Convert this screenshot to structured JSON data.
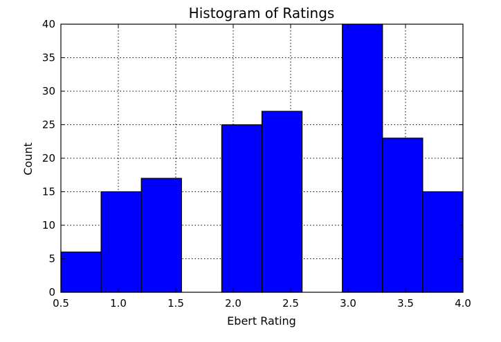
{
  "chart_data": {
    "type": "bar",
    "title": "Histogram of Ratings",
    "xlabel": "Ebert Rating",
    "ylabel": "Count",
    "xlim": [
      0.5,
      4.0
    ],
    "ylim": [
      0,
      40
    ],
    "grid": true,
    "bar_color": "#0000ff",
    "edge_color": "#000000",
    "bins": [
      {
        "x0": 0.5,
        "x1": 0.85,
        "count": 6
      },
      {
        "x0": 0.85,
        "x1": 1.2,
        "count": 15
      },
      {
        "x0": 1.2,
        "x1": 1.55,
        "count": 17
      },
      {
        "x0": 1.55,
        "x1": 1.9,
        "count": 0
      },
      {
        "x0": 1.9,
        "x1": 2.25,
        "count": 25
      },
      {
        "x0": 2.25,
        "x1": 2.6,
        "count": 27
      },
      {
        "x0": 2.6,
        "x1": 2.95,
        "count": 0
      },
      {
        "x0": 2.95,
        "x1": 3.3,
        "count": 40
      },
      {
        "x0": 3.3,
        "x1": 3.65,
        "count": 23
      },
      {
        "x0": 3.65,
        "x1": 4.0,
        "count": 15
      }
    ],
    "x_ticks": [
      {
        "value": 0.5,
        "label": "0.5"
      },
      {
        "value": 1.0,
        "label": "1.0"
      },
      {
        "value": 1.5,
        "label": "1.5"
      },
      {
        "value": 2.0,
        "label": "2.0"
      },
      {
        "value": 2.5,
        "label": "2.5"
      },
      {
        "value": 3.0,
        "label": "3.0"
      },
      {
        "value": 3.5,
        "label": "3.5"
      },
      {
        "value": 4.0,
        "label": "4.0"
      }
    ],
    "y_ticks": [
      {
        "value": 0,
        "label": "0"
      },
      {
        "value": 5,
        "label": "5"
      },
      {
        "value": 10,
        "label": "10"
      },
      {
        "value": 15,
        "label": "15"
      },
      {
        "value": 20,
        "label": "20"
      },
      {
        "value": 25,
        "label": "25"
      },
      {
        "value": 30,
        "label": "30"
      },
      {
        "value": 35,
        "label": "35"
      },
      {
        "value": 40,
        "label": "40"
      }
    ]
  }
}
